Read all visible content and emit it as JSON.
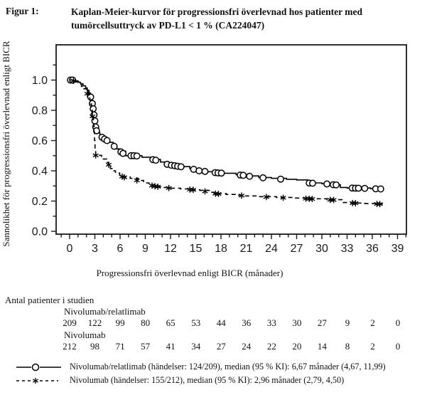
{
  "header": {
    "figure_label": "Figur 1:",
    "title_line1": "Kaplan-Meier-kurvor för progressionsfri överlevnad hos patienter med",
    "title_line2": "tumörcellsuttryck av PD-L1 < 1 % (CA224047)"
  },
  "chart_data": {
    "type": "line",
    "subtype": "kaplan-meier-step",
    "title": "",
    "xlabel": "Progressionsfri överlevnad enligt BICR (månader)",
    "ylabel": "Sannolikhet för progressionsfri överlevnad enligt BICR",
    "xlim": [
      0,
      39
    ],
    "ylim": [
      0.0,
      1.0
    ],
    "xticks": [
      0,
      3,
      6,
      9,
      12,
      15,
      18,
      21,
      24,
      27,
      30,
      33,
      36,
      39
    ],
    "yticks": [
      0.0,
      0.2,
      0.4,
      0.6,
      0.8,
      1.0
    ],
    "x_minor_step": 1,
    "y_minor_step": 0.1,
    "grid": false,
    "legend_position": "below",
    "series": [
      {
        "name": "Nivolumab/relatlimab",
        "line": "solid",
        "marker": "circle",
        "color": "#000000",
        "median_months": "6,67",
        "ci_95": "(4,67, 11,99)",
        "events": "124/209",
        "points": [
          [
            0,
            1.0
          ],
          [
            0.7,
            0.995
          ],
          [
            1.0,
            0.985
          ],
          [
            1.3,
            0.975
          ],
          [
            1.6,
            0.962
          ],
          [
            1.9,
            0.948
          ],
          [
            2.1,
            0.932
          ],
          [
            2.3,
            0.912
          ],
          [
            2.5,
            0.888
          ],
          [
            2.65,
            0.862
          ],
          [
            2.75,
            0.828
          ],
          [
            2.85,
            0.79
          ],
          [
            2.95,
            0.75
          ],
          [
            3.05,
            0.71
          ],
          [
            3.15,
            0.678
          ],
          [
            3.3,
            0.652
          ],
          [
            3.6,
            0.635
          ],
          [
            3.9,
            0.62
          ],
          [
            4.3,
            0.605
          ],
          [
            4.7,
            0.588
          ],
          [
            5.2,
            0.565
          ],
          [
            5.6,
            0.545
          ],
          [
            6.0,
            0.53
          ],
          [
            6.67,
            0.5
          ],
          [
            8.6,
            0.49
          ],
          [
            9.8,
            0.475
          ],
          [
            10.8,
            0.458
          ],
          [
            11.5,
            0.445
          ],
          [
            12.2,
            0.436
          ],
          [
            13.0,
            0.428
          ],
          [
            14.3,
            0.415
          ],
          [
            15.2,
            0.402
          ],
          [
            16.3,
            0.394
          ],
          [
            17.0,
            0.39
          ],
          [
            18.3,
            0.384
          ],
          [
            19.8,
            0.374
          ],
          [
            21.0,
            0.366
          ],
          [
            22.5,
            0.356
          ],
          [
            24.0,
            0.35
          ],
          [
            25.8,
            0.344
          ],
          [
            27.0,
            0.34
          ],
          [
            28.3,
            0.32
          ],
          [
            30.0,
            0.315
          ],
          [
            31.3,
            0.308
          ],
          [
            32.2,
            0.29
          ],
          [
            33.0,
            0.286
          ],
          [
            35.8,
            0.282
          ],
          [
            37.3,
            0.28
          ]
        ],
        "censor_marks": [
          [
            0.1,
            1.0
          ],
          [
            0.35,
            1.0
          ],
          [
            2.5,
            0.888
          ],
          [
            2.7,
            0.845
          ],
          [
            2.8,
            0.81
          ],
          [
            2.9,
            0.77
          ],
          [
            3.0,
            0.73
          ],
          [
            3.1,
            0.69
          ],
          [
            3.2,
            0.665
          ],
          [
            3.85,
            0.622
          ],
          [
            4.15,
            0.61
          ],
          [
            4.45,
            0.6
          ],
          [
            5.3,
            0.562
          ],
          [
            6.1,
            0.525
          ],
          [
            6.35,
            0.515
          ],
          [
            7.3,
            0.5
          ],
          [
            7.65,
            0.5
          ],
          [
            8.0,
            0.498
          ],
          [
            9.9,
            0.474
          ],
          [
            10.25,
            0.47
          ],
          [
            11.6,
            0.443
          ],
          [
            12.1,
            0.437
          ],
          [
            12.5,
            0.434
          ],
          [
            12.85,
            0.43
          ],
          [
            13.25,
            0.427
          ],
          [
            14.75,
            0.41
          ],
          [
            15.4,
            0.4
          ],
          [
            16.1,
            0.396
          ],
          [
            17.3,
            0.388
          ],
          [
            17.65,
            0.386
          ],
          [
            18.05,
            0.385
          ],
          [
            20.3,
            0.372
          ],
          [
            20.65,
            0.37
          ],
          [
            21.4,
            0.364
          ],
          [
            23.0,
            0.354
          ],
          [
            25.1,
            0.345
          ],
          [
            28.5,
            0.319
          ],
          [
            28.9,
            0.318
          ],
          [
            30.6,
            0.313
          ],
          [
            31.35,
            0.308
          ],
          [
            31.7,
            0.307
          ],
          [
            33.6,
            0.286
          ],
          [
            34.0,
            0.285
          ],
          [
            34.35,
            0.285
          ],
          [
            35.1,
            0.284
          ],
          [
            36.4,
            0.281
          ],
          [
            37.0,
            0.28
          ]
        ]
      },
      {
        "name": "Nivolumab",
        "line": "dashed",
        "marker": "asterisk",
        "color": "#000000",
        "median_months": "2,96",
        "ci_95": "(2,79, 4,50)",
        "events": "155/212",
        "points": [
          [
            0,
            1.0
          ],
          [
            0.8,
            0.988
          ],
          [
            1.1,
            0.973
          ],
          [
            1.4,
            0.958
          ],
          [
            1.7,
            0.942
          ],
          [
            2.0,
            0.922
          ],
          [
            2.2,
            0.898
          ],
          [
            2.4,
            0.868
          ],
          [
            2.5,
            0.842
          ],
          [
            2.6,
            0.812
          ],
          [
            2.7,
            0.778
          ],
          [
            2.78,
            0.738
          ],
          [
            2.84,
            0.698
          ],
          [
            2.9,
            0.655
          ],
          [
            2.96,
            0.6
          ],
          [
            3.02,
            0.545
          ],
          [
            3.1,
            0.502
          ],
          [
            3.8,
            0.478
          ],
          [
            4.4,
            0.455
          ],
          [
            4.65,
            0.44
          ],
          [
            4.85,
            0.415
          ],
          [
            5.05,
            0.4
          ],
          [
            5.45,
            0.385
          ],
          [
            5.95,
            0.37
          ],
          [
            6.3,
            0.36
          ],
          [
            7.2,
            0.35
          ],
          [
            8.15,
            0.336
          ],
          [
            8.8,
            0.32
          ],
          [
            9.45,
            0.308
          ],
          [
            9.95,
            0.3
          ],
          [
            10.55,
            0.294
          ],
          [
            11.25,
            0.29
          ],
          [
            12.0,
            0.285
          ],
          [
            13.2,
            0.28
          ],
          [
            14.4,
            0.275
          ],
          [
            15.5,
            0.27
          ],
          [
            16.8,
            0.258
          ],
          [
            17.2,
            0.25
          ],
          [
            18.6,
            0.244
          ],
          [
            19.8,
            0.238
          ],
          [
            20.9,
            0.234
          ],
          [
            22.6,
            0.229
          ],
          [
            24.6,
            0.224
          ],
          [
            26.6,
            0.22
          ],
          [
            28.6,
            0.215
          ],
          [
            30.6,
            0.209
          ],
          [
            32.4,
            0.19
          ],
          [
            33.6,
            0.187
          ],
          [
            35.1,
            0.184
          ],
          [
            36.6,
            0.181
          ],
          [
            37.3,
            0.18
          ]
        ],
        "censor_marks": [
          [
            0.45,
            0.995
          ],
          [
            2.1,
            0.91
          ],
          [
            2.72,
            0.76
          ],
          [
            3.1,
            0.502
          ],
          [
            4.65,
            0.44
          ],
          [
            6.25,
            0.362
          ],
          [
            6.5,
            0.357
          ],
          [
            8.0,
            0.337
          ],
          [
            9.8,
            0.302
          ],
          [
            10.15,
            0.298
          ],
          [
            10.5,
            0.295
          ],
          [
            11.8,
            0.286
          ],
          [
            14.3,
            0.276
          ],
          [
            14.7,
            0.274
          ],
          [
            16.1,
            0.264
          ],
          [
            17.35,
            0.249
          ],
          [
            17.7,
            0.247
          ],
          [
            20.45,
            0.236
          ],
          [
            23.4,
            0.227
          ],
          [
            25.4,
            0.222
          ],
          [
            28.1,
            0.216
          ],
          [
            28.5,
            0.215
          ],
          [
            28.85,
            0.214
          ],
          [
            31.0,
            0.208
          ],
          [
            31.4,
            0.207
          ],
          [
            33.65,
            0.187
          ],
          [
            34.0,
            0.186
          ],
          [
            36.55,
            0.181
          ],
          [
            36.9,
            0.18
          ]
        ]
      }
    ]
  },
  "risk_table": {
    "title": "Antal patienter i studien",
    "time_points": [
      0,
      3,
      6,
      9,
      12,
      15,
      18,
      21,
      24,
      27,
      30,
      33,
      36,
      39
    ],
    "rows": [
      {
        "label": "Nivolumab/relatlimab",
        "values": [
          209,
          122,
          99,
          80,
          65,
          53,
          44,
          36,
          33,
          30,
          27,
          9,
          2,
          0
        ]
      },
      {
        "label": "Nivolumab",
        "values": [
          212,
          98,
          71,
          57,
          41,
          34,
          27,
          24,
          22,
          20,
          14,
          8,
          2,
          0
        ]
      }
    ]
  },
  "legend": {
    "entries": [
      {
        "symbol": "solid-line-circle",
        "text": "Nivolumab/relatlimab (händelser: 124/209), median (95 % KI): 6,67 månader (4,67, 11,99)"
      },
      {
        "symbol": "dashed-line-asterisk",
        "text": "Nivolumab (händelser: 155/212), median (95 % KI): 2,96 månader (2,79, 4,50)"
      }
    ]
  },
  "colors": {
    "foreground": "#000000",
    "background": "#ffffff"
  }
}
